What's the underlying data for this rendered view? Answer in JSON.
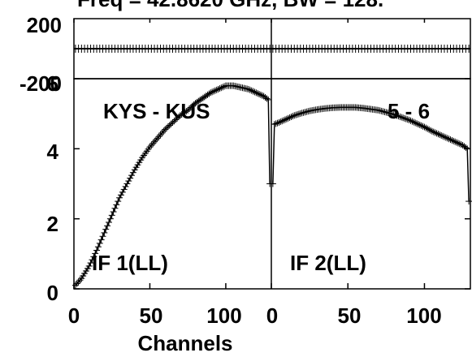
{
  "chart_data": {
    "type": "line",
    "title": "Freq = 42.8620 GHz, BW = 128.",
    "xlabel": "Channels",
    "phase_panels": {
      "ylim": [
        -200,
        200
      ],
      "y_ticks": [
        "200",
        "-200"
      ],
      "values_deg": [
        [
          0,
          0
        ],
        [
          0,
          0
        ]
      ]
    },
    "amp_panels": {
      "ylim": [
        0,
        6
      ],
      "y_ticks": [
        "0",
        "2",
        "4",
        "6"
      ]
    },
    "panels": [
      {
        "baseline": "KYS - KUS",
        "if_label": "IF 1(LL)",
        "x_ticks": [
          "0",
          "50",
          "100"
        ],
        "xlim": [
          0,
          130
        ],
        "series": [
          {
            "x": [
              1,
              5,
              10,
              15,
              20,
              25,
              30,
              35,
              40,
              45,
              50,
              55,
              60,
              65,
              70,
              75,
              80,
              85,
              90,
              95,
              100,
              105,
              110,
              115,
              120,
              125,
              128,
              129
            ],
            "y": [
              0.1,
              0.3,
              0.65,
              1.1,
              1.6,
              2.1,
              2.6,
              3.0,
              3.4,
              3.75,
              4.05,
              4.3,
              4.55,
              4.75,
              4.95,
              5.1,
              5.3,
              5.45,
              5.6,
              5.7,
              5.8,
              5.8,
              5.75,
              5.7,
              5.6,
              5.5,
              5.4,
              3.0
            ]
          }
        ]
      },
      {
        "baseline": "5 - 6",
        "if_label": "IF 2(LL)",
        "x_ticks": [
          "0",
          "50",
          "100"
        ],
        "xlim": [
          0,
          130
        ],
        "series": [
          {
            "x": [
              1,
              2,
              5,
              10,
              15,
              20,
              25,
              30,
              35,
              40,
              45,
              50,
              55,
              60,
              65,
              70,
              75,
              80,
              85,
              90,
              95,
              100,
              105,
              110,
              115,
              120,
              125,
              128,
              129
            ],
            "y": [
              3.0,
              4.7,
              4.75,
              4.85,
              4.95,
              5.02,
              5.08,
              5.12,
              5.15,
              5.17,
              5.18,
              5.18,
              5.18,
              5.16,
              5.13,
              5.1,
              5.04,
              4.98,
              4.9,
              4.82,
              4.72,
              4.62,
              4.5,
              4.4,
              4.3,
              4.2,
              4.1,
              4.0,
              2.5
            ]
          }
        ]
      }
    ]
  }
}
